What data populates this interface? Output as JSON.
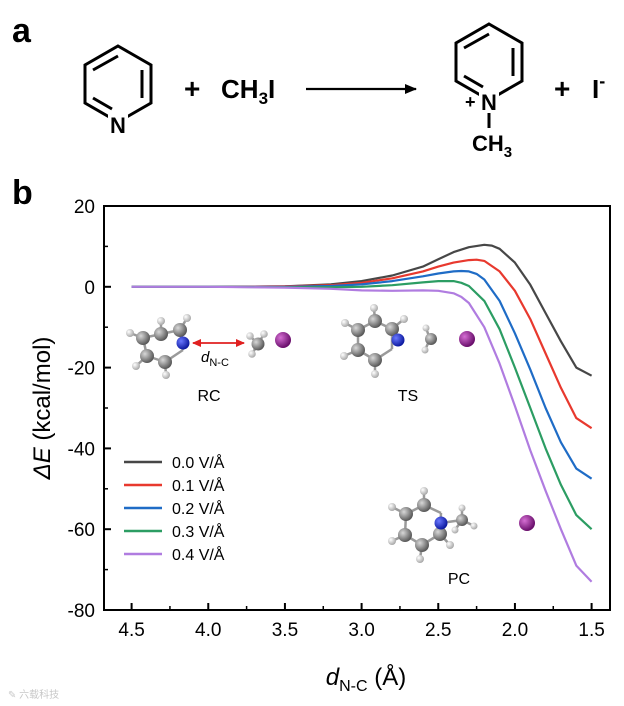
{
  "panel_a": {
    "label": "a",
    "plus1": "+",
    "methyl_iodide": [
      "CH",
      "3",
      "I"
    ],
    "pyridine_N": "N",
    "product_N": "N",
    "product_charge": "+",
    "product_methyl": [
      "CH",
      "3"
    ],
    "plus2": "+",
    "iodide": [
      "I",
      "-"
    ]
  },
  "panel_b": {
    "label": "b",
    "structure_labels": {
      "rc": "RC",
      "ts": "TS",
      "pc": "PC"
    },
    "dnc_annotation": [
      "d",
      "N-C"
    ]
  },
  "chart_data": {
    "type": "line",
    "xlabel": [
      "d",
      "N-C",
      " (Å)"
    ],
    "ylabel": [
      "ΔE",
      " (kcal/mol)"
    ],
    "xlim": [
      4.68,
      1.38
    ],
    "ylim": [
      -80,
      20
    ],
    "x_ticks": [
      4.5,
      4.0,
      3.5,
      3.0,
      2.5,
      2.0,
      1.5
    ],
    "x_tick_labels": [
      "4.5",
      "4.0",
      "3.5",
      "3.0",
      "2.5",
      "2.0",
      "1.5"
    ],
    "y_ticks": [
      20,
      0,
      -20,
      -40,
      -60,
      -80
    ],
    "y_tick_labels": [
      "20",
      "0",
      "-20",
      "-40",
      "-60",
      "-80"
    ],
    "legend_position": "bottom-left",
    "series": [
      {
        "name": "0.0 V/Å",
        "color": "#474747",
        "x": [
          4.5,
          4.0,
          3.5,
          3.2,
          3.0,
          2.8,
          2.6,
          2.5,
          2.4,
          2.3,
          2.2,
          2.15,
          2.1,
          2.0,
          1.9,
          1.8,
          1.7,
          1.6,
          1.5
        ],
        "y": [
          0,
          0,
          0.1,
          0.6,
          1.4,
          2.8,
          5.0,
          6.8,
          8.6,
          9.8,
          10.4,
          10.2,
          9.4,
          6.0,
          0.5,
          -6.5,
          -13.5,
          -20.0,
          -22.0
        ]
      },
      {
        "name": "0.1 V/Å",
        "color": "#e8392e",
        "x": [
          4.5,
          4.0,
          3.5,
          3.2,
          3.0,
          2.8,
          2.6,
          2.5,
          2.4,
          2.3,
          2.25,
          2.2,
          2.1,
          2.0,
          1.9,
          1.8,
          1.7,
          1.6,
          1.5
        ],
        "y": [
          0,
          0,
          0.1,
          0.4,
          1.0,
          2.1,
          3.8,
          5.0,
          6.0,
          6.6,
          6.7,
          6.4,
          3.8,
          -1.0,
          -8.0,
          -16.5,
          -25.0,
          -32.5,
          -35.0
        ]
      },
      {
        "name": "0.2 V/Å",
        "color": "#1f6cc6",
        "x": [
          4.5,
          4.0,
          3.5,
          3.2,
          3.0,
          2.8,
          2.6,
          2.5,
          2.4,
          2.35,
          2.3,
          2.25,
          2.2,
          2.1,
          2.0,
          1.9,
          1.8,
          1.7,
          1.6,
          1.5
        ],
        "y": [
          0,
          0,
          0,
          0.2,
          0.6,
          1.4,
          2.6,
          3.3,
          3.8,
          3.9,
          3.8,
          3.2,
          1.8,
          -3.5,
          -11.5,
          -20.5,
          -30.0,
          -38.5,
          -45.0,
          -47.5
        ]
      },
      {
        "name": "0.3 V/Å",
        "color": "#2c9d63",
        "x": [
          4.5,
          4.0,
          3.5,
          3.2,
          3.0,
          2.8,
          2.6,
          2.5,
          2.4,
          2.35,
          2.3,
          2.2,
          2.1,
          2.0,
          1.9,
          1.8,
          1.7,
          1.6,
          1.5
        ],
        "y": [
          0,
          0,
          -0.1,
          -0.1,
          0,
          0.4,
          1.1,
          1.4,
          1.4,
          1.0,
          0.2,
          -3.5,
          -10.5,
          -20.0,
          -30.0,
          -40.0,
          -49.0,
          -56.5,
          -60.0
        ]
      },
      {
        "name": "0.4 V/Å",
        "color": "#b07ce0",
        "x": [
          4.5,
          4.0,
          3.5,
          3.2,
          3.0,
          2.8,
          2.6,
          2.5,
          2.4,
          2.35,
          2.3,
          2.2,
          2.1,
          2.0,
          1.9,
          1.8,
          1.7,
          1.6,
          1.5
        ],
        "y": [
          0,
          0,
          -0.2,
          -0.5,
          -0.9,
          -1.0,
          -0.9,
          -1.0,
          -1.6,
          -2.5,
          -4.0,
          -10.0,
          -19.0,
          -29.5,
          -40.5,
          -50.5,
          -60.0,
          -69.0,
          -73.0
        ]
      }
    ]
  }
}
